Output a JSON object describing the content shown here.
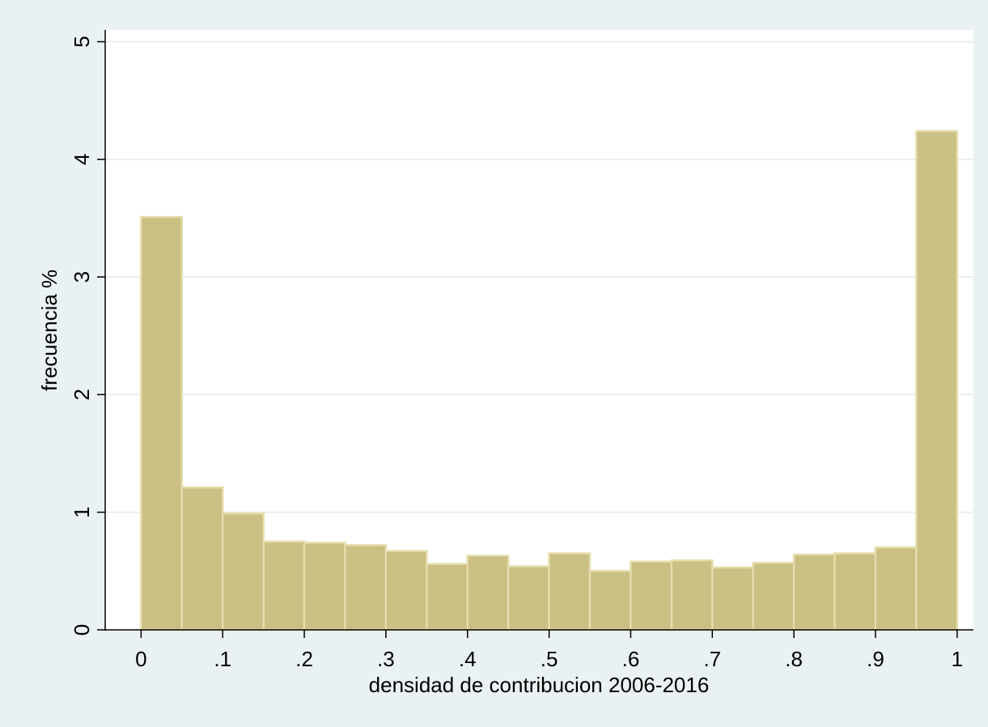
{
  "chart_data": {
    "type": "bar",
    "title": "",
    "xlabel": "densidad de contribucion 2006-2016",
    "ylabel": "frecuencia %",
    "xlim": [
      -0.044,
      1.02
    ],
    "ylim": [
      0,
      5.1
    ],
    "x_ticks": [
      {
        "value": 0,
        "label": "0"
      },
      {
        "value": 0.1,
        "label": ".1"
      },
      {
        "value": 0.2,
        "label": ".2"
      },
      {
        "value": 0.3,
        "label": ".3"
      },
      {
        "value": 0.4,
        "label": ".4"
      },
      {
        "value": 0.5,
        "label": ".5"
      },
      {
        "value": 0.6,
        "label": ".6"
      },
      {
        "value": 0.7,
        "label": ".7"
      },
      {
        "value": 0.8,
        "label": ".8"
      },
      {
        "value": 0.9,
        "label": ".9"
      },
      {
        "value": 1,
        "label": "1"
      }
    ],
    "y_ticks": [
      {
        "value": 0,
        "label": "0"
      },
      {
        "value": 1,
        "label": "1"
      },
      {
        "value": 2,
        "label": "2"
      },
      {
        "value": 3,
        "label": "3"
      },
      {
        "value": 4,
        "label": "4"
      },
      {
        "value": 5,
        "label": "5"
      }
    ],
    "grid": true,
    "bin_width": 0.05,
    "bins": [
      {
        "x0": 0.0,
        "value": 3.51
      },
      {
        "x0": 0.05,
        "value": 1.21
      },
      {
        "x0": 0.1,
        "value": 0.99
      },
      {
        "x0": 0.15,
        "value": 0.75
      },
      {
        "x0": 0.2,
        "value": 0.74
      },
      {
        "x0": 0.25,
        "value": 0.72
      },
      {
        "x0": 0.3,
        "value": 0.67
      },
      {
        "x0": 0.35,
        "value": 0.56
      },
      {
        "x0": 0.4,
        "value": 0.63
      },
      {
        "x0": 0.45,
        "value": 0.54
      },
      {
        "x0": 0.5,
        "value": 0.65
      },
      {
        "x0": 0.55,
        "value": 0.5
      },
      {
        "x0": 0.6,
        "value": 0.58
      },
      {
        "x0": 0.65,
        "value": 0.59
      },
      {
        "x0": 0.7,
        "value": 0.53
      },
      {
        "x0": 0.75,
        "value": 0.57
      },
      {
        "x0": 0.8,
        "value": 0.64
      },
      {
        "x0": 0.85,
        "value": 0.65
      },
      {
        "x0": 0.9,
        "value": 0.7
      },
      {
        "x0": 0.95,
        "value": 4.24
      }
    ],
    "colors": {
      "outer_background": "#eaf1f3",
      "plot_background": "#ffffff",
      "bar_fill": "#cbc083",
      "bar_edge": "#e4dcaa",
      "grid": "#e7eff1",
      "axis": "#000000"
    }
  }
}
